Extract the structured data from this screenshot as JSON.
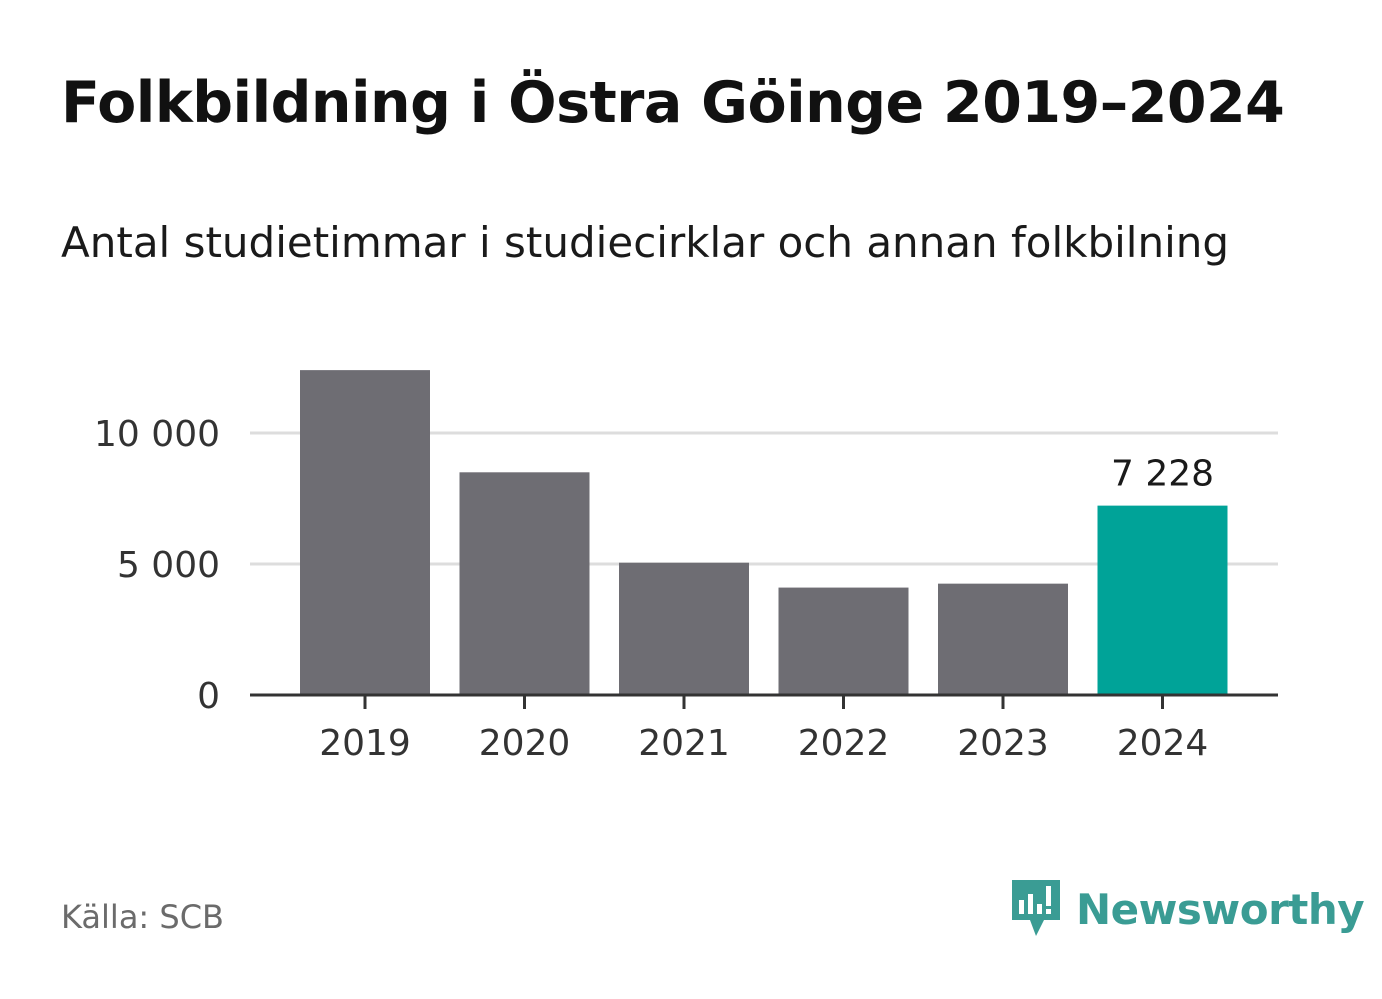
{
  "title": "Folkbildning i Östra Göinge 2019–2024",
  "subtitle": "Antal studietimmar i studiecirklar och annan folkbilning",
  "source": "Källa: SCB",
  "brand": {
    "name": "Newsworthy",
    "icon": "newsworthy-logo-icon",
    "color": "#3a9c94"
  },
  "chart_data": {
    "type": "bar",
    "categories": [
      "2019",
      "2020",
      "2021",
      "2022",
      "2023",
      "2024"
    ],
    "values": [
      12400,
      8500,
      5050,
      4100,
      4250,
      7228
    ],
    "ylim": [
      0,
      12500
    ],
    "yticks": [
      0,
      5000,
      10000
    ],
    "ytick_labels": [
      "0",
      "5 000",
      "10 000"
    ],
    "grid": true,
    "bar_color": "#6e6d73",
    "highlight_color": "#00a398",
    "highlight_index": 5,
    "value_labels": [
      {
        "index": 5,
        "text": "7 228"
      }
    ]
  }
}
